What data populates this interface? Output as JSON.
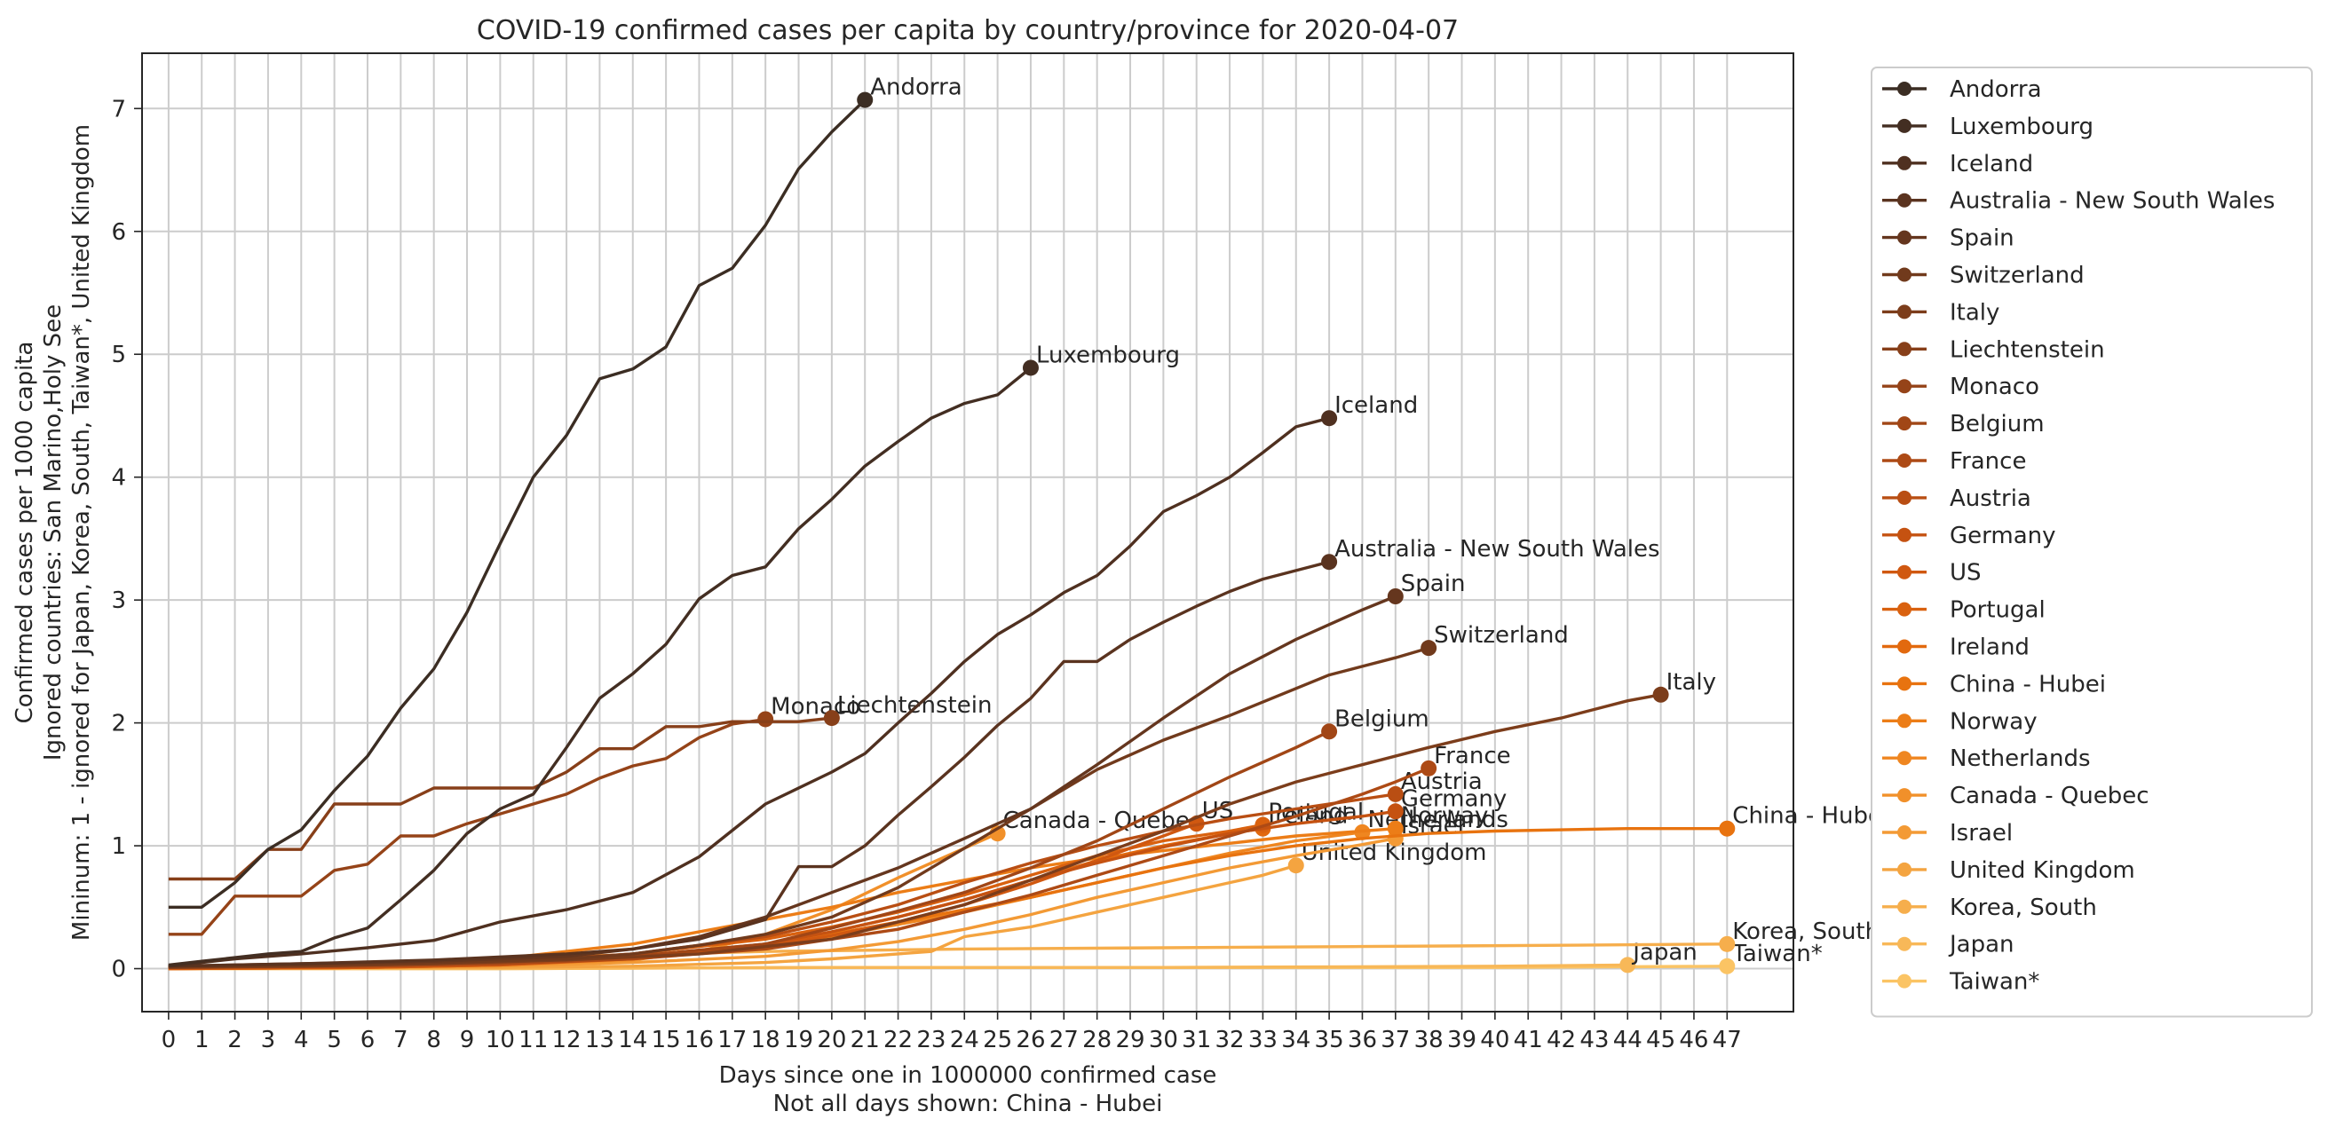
{
  "chart_data": {
    "type": "line",
    "title": "COVID-19 confirmed cases per capita by country/province for 2020-04-07",
    "xlabel": [
      "Days since one in 1000000 confirmed case",
      "Not all days shown: China - Hubei"
    ],
    "ylabel": [
      "Confirmed cases per 1000 capita",
      "Ignored countries: San Marino,Holy See",
      "Mininum: 1 - ignored for Japan, Korea, South, Taiwan*, United Kingdom"
    ],
    "xlim": [
      -0.8,
      49.0
    ],
    "ylim": [
      -0.35,
      7.45
    ],
    "x_ticks": [
      0,
      1,
      2,
      3,
      4,
      5,
      6,
      7,
      8,
      9,
      10,
      11,
      12,
      13,
      14,
      15,
      16,
      17,
      18,
      19,
      20,
      21,
      22,
      23,
      24,
      25,
      26,
      27,
      28,
      29,
      30,
      31,
      32,
      33,
      34,
      35,
      36,
      37,
      38,
      39,
      40,
      41,
      42,
      43,
      44,
      45,
      46,
      47
    ],
    "y_ticks": [
      0,
      1,
      2,
      3,
      4,
      5,
      6,
      7
    ],
    "grid": true,
    "legend_position": "outside-right",
    "series": [
      {
        "name": "Andorra",
        "color": "#3b2d23",
        "end_label": "Andorra",
        "x": [
          0,
          1,
          2,
          3,
          4,
          5,
          6,
          7,
          8,
          9,
          10,
          11,
          12,
          13,
          14,
          15,
          16,
          17,
          18,
          19,
          20,
          21
        ],
        "y": [
          0.5,
          0.5,
          0.7,
          0.97,
          1.13,
          1.45,
          1.73,
          2.12,
          2.44,
          2.9,
          3.46,
          4.0,
          4.34,
          4.8,
          4.88,
          5.06,
          5.56,
          5.7,
          6.05,
          6.51,
          6.81,
          7.07
        ]
      },
      {
        "name": "Luxembourg",
        "color": "#432e22",
        "end_label": "Luxembourg",
        "x": [
          0,
          1,
          2,
          3,
          4,
          5,
          6,
          7,
          8,
          9,
          10,
          11,
          12,
          13,
          14,
          15,
          16,
          17,
          18,
          19,
          20,
          21,
          22,
          23,
          24,
          25,
          26
        ],
        "y": [
          0.03,
          0.06,
          0.09,
          0.12,
          0.14,
          0.25,
          0.33,
          0.56,
          0.8,
          1.1,
          1.3,
          1.42,
          1.8,
          2.2,
          2.4,
          2.64,
          3.01,
          3.2,
          3.27,
          3.58,
          3.82,
          4.09,
          4.29,
          4.48,
          4.6,
          4.67,
          4.89
        ]
      },
      {
        "name": "Iceland",
        "color": "#4f3020",
        "end_label": "Iceland",
        "x": [
          0,
          2,
          4,
          6,
          8,
          10,
          12,
          14,
          16,
          18,
          20,
          21,
          22,
          23,
          24,
          25,
          26,
          27,
          28,
          29,
          30,
          31,
          32,
          33,
          34,
          35
        ],
        "y": [
          0.02,
          0.08,
          0.12,
          0.17,
          0.23,
          0.38,
          0.48,
          0.62,
          0.91,
          1.34,
          1.6,
          1.75,
          2.0,
          2.24,
          2.5,
          2.72,
          2.88,
          3.06,
          3.2,
          3.44,
          3.72,
          3.85,
          4.0,
          4.2,
          4.41,
          4.48
        ]
      },
      {
        "name": "Australia - New South Wales",
        "color": "#5a331f",
        "end_label": "Australia - New South Wales",
        "x": [
          0,
          4,
          8,
          12,
          14,
          16,
          18,
          19,
          20,
          21,
          22,
          23,
          24,
          25,
          26,
          27,
          28,
          29,
          30,
          31,
          32,
          33,
          34,
          35
        ],
        "y": [
          0.02,
          0.04,
          0.07,
          0.12,
          0.16,
          0.24,
          0.4,
          0.83,
          0.83,
          1.0,
          1.25,
          1.48,
          1.72,
          1.98,
          2.2,
          2.5,
          2.5,
          2.68,
          2.82,
          2.95,
          3.07,
          3.17,
          3.24,
          3.31
        ]
      },
      {
        "name": "Spain",
        "color": "#65361e",
        "end_label": "Spain",
        "x": [
          0,
          4,
          8,
          12,
          14,
          16,
          18,
          20,
          22,
          24,
          26,
          28,
          30,
          32,
          34,
          35,
          36,
          37
        ],
        "y": [
          0.02,
          0.04,
          0.06,
          0.1,
          0.16,
          0.26,
          0.42,
          0.62,
          0.82,
          1.06,
          1.3,
          1.66,
          2.04,
          2.4,
          2.68,
          2.8,
          2.92,
          3.03
        ]
      },
      {
        "name": "Switzerland",
        "color": "#713a1c",
        "end_label": "Switzerland",
        "x": [
          0,
          4,
          8,
          12,
          14,
          16,
          18,
          20,
          22,
          24,
          26,
          28,
          30,
          32,
          34,
          35,
          36,
          37,
          38
        ],
        "y": [
          0.02,
          0.03,
          0.05,
          0.08,
          0.12,
          0.19,
          0.28,
          0.42,
          0.66,
          0.98,
          1.3,
          1.62,
          1.86,
          2.06,
          2.28,
          2.39,
          2.46,
          2.53,
          2.61
        ]
      },
      {
        "name": "Italy",
        "color": "#7c3d1b",
        "end_label": "Italy",
        "x": [
          0,
          4,
          8,
          12,
          16,
          20,
          24,
          26,
          28,
          30,
          32,
          34,
          36,
          38,
          40,
          42,
          43,
          44,
          45
        ],
        "y": [
          0.01,
          0.02,
          0.04,
          0.07,
          0.12,
          0.24,
          0.52,
          0.72,
          0.92,
          1.12,
          1.34,
          1.52,
          1.66,
          1.8,
          1.93,
          2.04,
          2.11,
          2.18,
          2.23
        ]
      },
      {
        "name": "Liechtenstein",
        "color": "#873f19",
        "end_label": "Liechtenstein",
        "x": [
          0,
          1,
          2,
          3,
          4,
          5,
          6,
          7,
          8,
          9,
          10,
          11,
          12,
          13,
          14,
          15,
          16,
          17,
          18,
          19,
          20
        ],
        "y": [
          0.73,
          0.73,
          0.73,
          0.97,
          0.97,
          1.34,
          1.34,
          1.34,
          1.47,
          1.47,
          1.47,
          1.47,
          1.6,
          1.79,
          1.79,
          1.97,
          1.97,
          2.01,
          2.01,
          2.01,
          2.04
        ]
      },
      {
        "name": "Monaco",
        "color": "#954318",
        "end_label": "Monaco",
        "x": [
          0,
          1,
          2,
          3,
          4,
          5,
          6,
          7,
          8,
          9,
          10,
          11,
          12,
          13,
          14,
          15,
          16,
          17,
          18
        ],
        "y": [
          0.28,
          0.28,
          0.59,
          0.59,
          0.59,
          0.8,
          0.85,
          1.08,
          1.08,
          1.18,
          1.26,
          1.34,
          1.42,
          1.55,
          1.65,
          1.71,
          1.88,
          1.99,
          2.03
        ]
      },
      {
        "name": "Belgium",
        "color": "#a14616",
        "end_label": "Belgium",
        "x": [
          0,
          6,
          10,
          14,
          18,
          20,
          22,
          24,
          26,
          28,
          30,
          32,
          34,
          35
        ],
        "y": [
          0.01,
          0.03,
          0.05,
          0.1,
          0.2,
          0.33,
          0.47,
          0.62,
          0.82,
          1.04,
          1.3,
          1.56,
          1.8,
          1.93
        ]
      },
      {
        "name": "France",
        "color": "#ad4a15",
        "end_label": "France",
        "x": [
          0,
          6,
          10,
          14,
          18,
          22,
          24,
          26,
          28,
          30,
          32,
          34,
          36,
          37,
          38
        ],
        "y": [
          0.01,
          0.02,
          0.04,
          0.08,
          0.16,
          0.32,
          0.46,
          0.6,
          0.76,
          0.92,
          1.08,
          1.24,
          1.42,
          1.52,
          1.63
        ]
      },
      {
        "name": "Austria",
        "color": "#b94e13",
        "end_label": "Austria",
        "x": [
          0,
          6,
          10,
          14,
          18,
          20,
          22,
          24,
          26,
          28,
          30,
          32,
          34,
          36,
          37
        ],
        "y": [
          0.01,
          0.02,
          0.05,
          0.12,
          0.26,
          0.38,
          0.52,
          0.7,
          0.86,
          1.0,
          1.12,
          1.22,
          1.3,
          1.38,
          1.42
        ]
      },
      {
        "name": "Germany",
        "color": "#c55211",
        "end_label": "Germany",
        "x": [
          0,
          6,
          10,
          14,
          18,
          20,
          22,
          24,
          26,
          28,
          30,
          32,
          34,
          36,
          37
        ],
        "y": [
          0.01,
          0.02,
          0.04,
          0.09,
          0.2,
          0.3,
          0.42,
          0.56,
          0.72,
          0.86,
          0.99,
          1.1,
          1.18,
          1.24,
          1.28
        ]
      },
      {
        "name": "US",
        "color": "#d05810",
        "end_label": "US",
        "x": [
          0,
          6,
          10,
          14,
          18,
          20,
          22,
          24,
          26,
          28,
          30,
          31
        ],
        "y": [
          0.0,
          0.01,
          0.03,
          0.08,
          0.18,
          0.27,
          0.38,
          0.52,
          0.69,
          0.88,
          1.08,
          1.18
        ]
      },
      {
        "name": "Portugal",
        "color": "#d9610f",
        "end_label": "Portugal",
        "x": [
          0,
          6,
          10,
          14,
          18,
          20,
          22,
          24,
          26,
          28,
          30,
          32,
          33
        ],
        "y": [
          0.01,
          0.02,
          0.05,
          0.12,
          0.24,
          0.34,
          0.46,
          0.6,
          0.76,
          0.92,
          1.04,
          1.12,
          1.17
        ]
      },
      {
        "name": "Ireland",
        "color": "#e2690e",
        "end_label": "Ireland",
        "x": [
          0,
          6,
          10,
          14,
          18,
          20,
          22,
          24,
          26,
          28,
          30,
          32,
          33
        ],
        "y": [
          0.01,
          0.02,
          0.05,
          0.1,
          0.2,
          0.3,
          0.42,
          0.56,
          0.72,
          0.88,
          1.0,
          1.1,
          1.14
        ]
      },
      {
        "name": "China - Hubei",
        "color": "#e8730f",
        "end_label": "China - Hubei",
        "x": [
          0,
          6,
          10,
          14,
          18,
          20,
          22,
          24,
          26,
          28,
          30,
          32,
          34,
          36,
          38,
          40,
          42,
          44,
          46,
          47
        ],
        "y": [
          0.0,
          0.01,
          0.03,
          0.09,
          0.19,
          0.28,
          0.38,
          0.48,
          0.58,
          0.7,
          0.82,
          0.92,
          1.0,
          1.06,
          1.1,
          1.12,
          1.13,
          1.14,
          1.14,
          1.14
        ]
      },
      {
        "name": "Norway",
        "color": "#ec7d17",
        "end_label": "Norway",
        "x": [
          0,
          6,
          10,
          14,
          18,
          20,
          22,
          24,
          26,
          28,
          30,
          32,
          34,
          36,
          37
        ],
        "y": [
          0.01,
          0.03,
          0.08,
          0.2,
          0.4,
          0.5,
          0.62,
          0.72,
          0.82,
          0.9,
          0.96,
          1.02,
          1.08,
          1.12,
          1.14
        ]
      },
      {
        "name": "Netherlands",
        "color": "#ef8620",
        "end_label": "Netherlands",
        "x": [
          0,
          6,
          10,
          14,
          18,
          20,
          22,
          24,
          26,
          28,
          30,
          32,
          34,
          36
        ],
        "y": [
          0.0,
          0.01,
          0.03,
          0.08,
          0.18,
          0.26,
          0.36,
          0.46,
          0.58,
          0.7,
          0.82,
          0.94,
          1.04,
          1.11
        ]
      },
      {
        "name": "Canada - Quebec",
        "color": "#f1902a",
        "end_label": "Canada - Quebec",
        "x": [
          0,
          6,
          10,
          14,
          16,
          18,
          20,
          22,
          24,
          25
        ],
        "y": [
          0.0,
          0.01,
          0.03,
          0.07,
          0.14,
          0.28,
          0.48,
          0.74,
          0.98,
          1.1
        ]
      },
      {
        "name": "Israel",
        "color": "#f39a35",
        "end_label": "Israel",
        "x": [
          0,
          6,
          10,
          14,
          18,
          20,
          22,
          24,
          26,
          28,
          30,
          32,
          34,
          36,
          37
        ],
        "y": [
          0.0,
          0.01,
          0.02,
          0.05,
          0.1,
          0.15,
          0.22,
          0.32,
          0.44,
          0.58,
          0.7,
          0.82,
          0.92,
          1.01,
          1.06
        ]
      },
      {
        "name": "United Kingdom",
        "color": "#f4a440",
        "end_label": "United Kingdom",
        "x": [
          0,
          6,
          10,
          14,
          18,
          20,
          22,
          23,
          24,
          26,
          28,
          30,
          32,
          33,
          34
        ],
        "y": [
          0.0,
          0.01,
          0.01,
          0.02,
          0.05,
          0.08,
          0.12,
          0.14,
          0.26,
          0.34,
          0.46,
          0.58,
          0.7,
          0.76,
          0.84
        ]
      },
      {
        "name": "Korea, South",
        "color": "#f6ae4c",
        "end_label": "Korea, South",
        "x": [
          0,
          3,
          6,
          9,
          12,
          18,
          24,
          30,
          36,
          42,
          47
        ],
        "y": [
          0.0,
          0.01,
          0.03,
          0.06,
          0.1,
          0.14,
          0.16,
          0.17,
          0.18,
          0.19,
          0.2
        ]
      },
      {
        "name": "Japan",
        "color": "#f8b858",
        "end_label": "Japan",
        "x": [
          0,
          10,
          20,
          30,
          40,
          44
        ],
        "y": [
          0.0,
          0.0,
          0.01,
          0.01,
          0.02,
          0.03
        ]
      },
      {
        "name": "Taiwan*",
        "color": "#fbc464",
        "end_label": "Taiwan*",
        "x": [
          0,
          10,
          20,
          30,
          40,
          47
        ],
        "y": [
          0.0,
          0.0,
          0.01,
          0.01,
          0.01,
          0.02
        ]
      }
    ]
  }
}
